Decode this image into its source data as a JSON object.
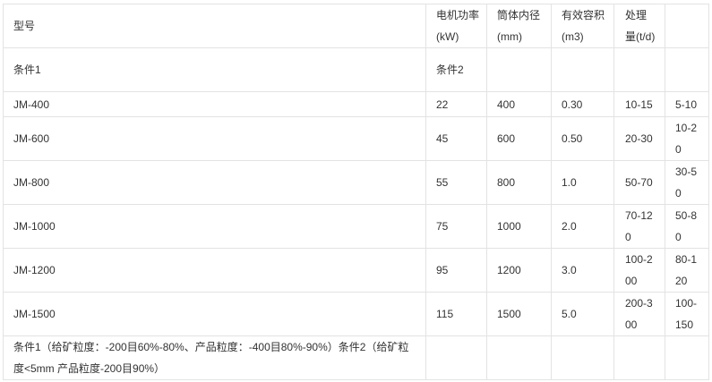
{
  "header": [
    "型号",
    "电机功率(kW)",
    "筒体内径(mm)",
    "有效容积(m3)",
    "处理量(t/d)",
    ""
  ],
  "condition_row": [
    "条件1",
    "条件2",
    "",
    "",
    "",
    ""
  ],
  "rows": [
    [
      "JM-400",
      "22",
      "400",
      "0.30",
      "10-15",
      "5-10"
    ],
    [
      "JM-600",
      "45",
      "600",
      "0.50",
      "20-30",
      "10-20"
    ],
    [
      "JM-800",
      "55",
      "800",
      "1.0",
      "50-70",
      "30-50"
    ],
    [
      "JM-1000",
      "75",
      "1000",
      "2.0",
      "70-120",
      "50-80"
    ],
    [
      "JM-1200",
      "95",
      "1200",
      "3.0",
      "100-200",
      "80-120"
    ],
    [
      "JM-1500",
      "115",
      "1500",
      "5.0",
      "200-300",
      "100-150"
    ]
  ],
  "footnote": "条件1（给矿粒度：-200目60%-80%、产品粒度：-400目80%-90%）条件2（给矿粒度<5mm 产品粒度-200目90%）"
}
